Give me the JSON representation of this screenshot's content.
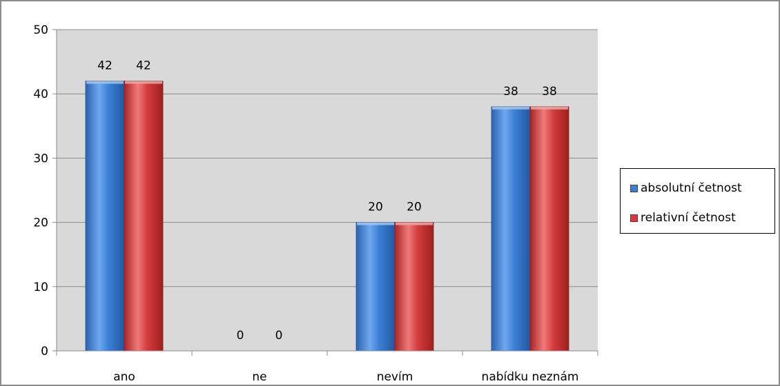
{
  "chart_data": {
    "type": "bar",
    "categories": [
      "ano",
      "ne",
      "nevím",
      "nabídku neznám"
    ],
    "series": [
      {
        "name": "absolutní četnost",
        "values": [
          42,
          0,
          20,
          38
        ],
        "color": "#3a7fd5"
      },
      {
        "name": "relativní četnost",
        "values": [
          42,
          0,
          20,
          38
        ],
        "color": "#d33c3c"
      }
    ],
    "data_labels": [
      [
        "42",
        "0",
        "20",
        "38"
      ],
      [
        "42",
        "0",
        "20",
        "38"
      ]
    ],
    "y_ticks": [
      "0",
      "10",
      "20",
      "30",
      "40",
      "50"
    ],
    "ylim": [
      0,
      50
    ],
    "title": "",
    "xlabel": "",
    "ylabel": "",
    "grid": true,
    "plot_background": "#d9d9d9",
    "legend_position": "right"
  }
}
